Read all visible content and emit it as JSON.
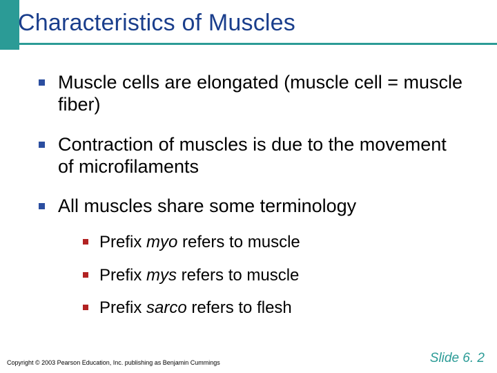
{
  "colors": {
    "accent": "#2b9b96",
    "title": "#1a3e8c",
    "bullet1": "#2b4ea0",
    "bullet2": "#b22222",
    "footer_right": "#2b9b96",
    "underline": "#2b9b96",
    "body_text": "#000000",
    "background": "#ffffff"
  },
  "typography": {
    "title_fontsize": 34,
    "lvl1_fontsize": 27,
    "lvl2_fontsize": 24,
    "footer_left_fontsize": 9,
    "footer_right_fontsize": 19,
    "font_family": "Arial"
  },
  "title": "Characteristics of Muscles",
  "bullets": [
    {
      "text": "Muscle cells are elongated (muscle cell = muscle fiber)"
    },
    {
      "text": "Contraction of muscles is due to the movement of microfilaments"
    },
    {
      "text": "All muscles share some terminology",
      "sub": [
        {
          "prefix": "Prefix ",
          "italic": "myo",
          "rest": " refers to muscle"
        },
        {
          "prefix": "Prefix ",
          "italic": "mys",
          "rest": " refers to muscle"
        },
        {
          "prefix": "Prefix ",
          "italic": "sarco",
          "rest": " refers to flesh"
        }
      ]
    }
  ],
  "footer": {
    "left": "Copyright © 2003 Pearson Education, Inc. publishing as Benjamin Cummings",
    "right": "Slide 6. 2"
  }
}
